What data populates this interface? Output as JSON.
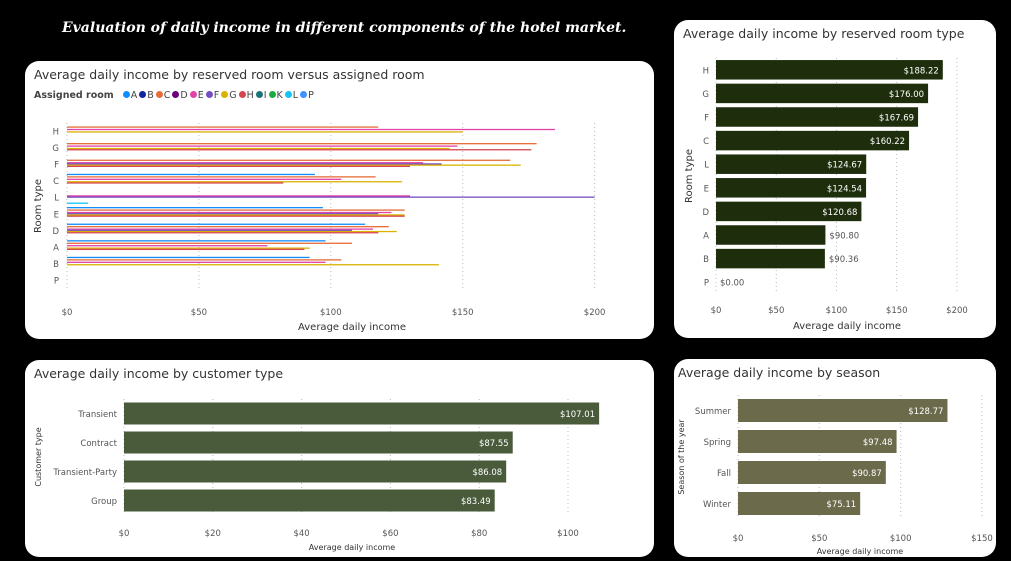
{
  "main_title": "Evaluation of daily income in different components of the hotel market.",
  "charts": {
    "reserved_vs_assigned": {
      "title": "Average daily income by reserved room versus assigned room",
      "legend_title": "Assigned room"
    },
    "reserved_type": {
      "title": "Average daily income by reserved room type"
    },
    "customer_type": {
      "title": "Average daily income by customer type"
    },
    "season": {
      "title": "Average daily income by season"
    }
  },
  "colors": {
    "dark_green": "#1e2e0c",
    "olive": "#4a5b3b",
    "khaki": "#6b6b4b",
    "rooms": {
      "A": "#118dff",
      "B": "#12239e",
      "C": "#e66c37",
      "D": "#6b007b",
      "E": "#e044a7",
      "F": "#744ec2",
      "G": "#d9b300",
      "H": "#d64550",
      "I": "#197278",
      "K": "#1aab40",
      "L": "#15c6f4",
      "P": "#4092ff"
    }
  },
  "chart_data": [
    {
      "type": "bar",
      "orientation": "horizontal",
      "title": "Average daily income by reserved room versus assigned room",
      "xlabel": "Average daily income",
      "ylabel": "Room type",
      "xlim": [
        0,
        210
      ],
      "xticks": [
        "$0",
        "$50",
        "$100",
        "$150",
        "$200"
      ],
      "xtick_values": [
        0,
        50,
        100,
        150,
        200
      ],
      "legend_title": "Assigned room",
      "legend": [
        "A",
        "B",
        "C",
        "D",
        "E",
        "F",
        "G",
        "H",
        "I",
        "K",
        "L",
        "P"
      ],
      "legend_placement": "top-left",
      "categories": [
        "H",
        "G",
        "F",
        "C",
        "L",
        "E",
        "D",
        "A",
        "B",
        "P"
      ],
      "series": [
        {
          "name": "A",
          "values": [
            null,
            null,
            null,
            94,
            null,
            97,
            113,
            98,
            92,
            null
          ]
        },
        {
          "name": "B",
          "values": [
            null,
            null,
            null,
            null,
            null,
            null,
            null,
            null,
            null,
            null
          ]
        },
        {
          "name": "C",
          "values": [
            118,
            178,
            168,
            117,
            null,
            128,
            122,
            108,
            104,
            null
          ]
        },
        {
          "name": "D",
          "values": [
            null,
            null,
            null,
            null,
            null,
            null,
            null,
            null,
            null,
            null
          ]
        },
        {
          "name": "E",
          "values": [
            185,
            148,
            135,
            104,
            130,
            123,
            116,
            76,
            98,
            null
          ]
        },
        {
          "name": "F",
          "values": [
            null,
            null,
            142,
            null,
            200,
            118,
            108,
            null,
            null,
            null
          ]
        },
        {
          "name": "G",
          "values": [
            150,
            145,
            172,
            127,
            null,
            128,
            125,
            92,
            141,
            null
          ]
        },
        {
          "name": "H",
          "values": [
            null,
            176,
            130,
            82,
            null,
            128,
            118,
            90,
            null,
            null
          ]
        },
        {
          "name": "I",
          "values": [
            null,
            null,
            null,
            null,
            null,
            null,
            null,
            null,
            null,
            null
          ]
        },
        {
          "name": "K",
          "values": [
            null,
            null,
            null,
            null,
            null,
            null,
            null,
            null,
            null,
            null
          ]
        },
        {
          "name": "L",
          "values": [
            null,
            null,
            null,
            null,
            8,
            null,
            null,
            null,
            null,
            null
          ]
        },
        {
          "name": "P",
          "values": [
            null,
            null,
            null,
            null,
            null,
            null,
            null,
            null,
            null,
            null
          ]
        }
      ]
    },
    {
      "type": "bar",
      "orientation": "horizontal",
      "title": "Average daily income by reserved room type",
      "xlabel": "Average daily income",
      "ylabel": "Room type",
      "xlim": [
        0,
        200
      ],
      "xticks": [
        "$0",
        "$50",
        "$100",
        "$150",
        "$200"
      ],
      "xtick_values": [
        0,
        50,
        100,
        150,
        200
      ],
      "categories": [
        "H",
        "G",
        "F",
        "C",
        "L",
        "E",
        "D",
        "A",
        "B",
        "P"
      ],
      "values": [
        188.22,
        176.0,
        167.69,
        160.22,
        124.67,
        124.54,
        120.68,
        90.8,
        90.36,
        0.0
      ],
      "data_labels": [
        "$188.22",
        "$176.00",
        "$167.69",
        "$160.22",
        "$124.67",
        "$124.54",
        "$120.68",
        "$90.80",
        "$90.36",
        "$0.00"
      ]
    },
    {
      "type": "bar",
      "orientation": "horizontal",
      "title": "Average daily income by customer type",
      "xlabel": "Average daily income",
      "ylabel": "Customer type",
      "xlim": [
        0,
        100
      ],
      "xticks": [
        "$0",
        "$20",
        "$40",
        "$60",
        "$80",
        "$100"
      ],
      "xtick_values": [
        0,
        20,
        40,
        60,
        80,
        100
      ],
      "categories": [
        "Transient",
        "Contract",
        "Transient-Party",
        "Group"
      ],
      "values": [
        107.01,
        87.55,
        86.08,
        83.49
      ],
      "data_labels": [
        "$107.01",
        "$87.55",
        "$86.08",
        "$83.49"
      ]
    },
    {
      "type": "bar",
      "orientation": "horizontal",
      "title": "Average daily income by season",
      "xlabel": "Average daily income",
      "ylabel": "Season of the year",
      "xlim": [
        0,
        150
      ],
      "xticks": [
        "$0",
        "$50",
        "$100",
        "$150"
      ],
      "xtick_values": [
        0,
        50,
        100,
        150
      ],
      "categories": [
        "Summer",
        "Spring",
        "Fall",
        "Winter"
      ],
      "values": [
        128.77,
        97.48,
        90.87,
        75.11
      ],
      "data_labels": [
        "$128.77",
        "$97.48",
        "$90.87",
        "$75.11"
      ]
    }
  ]
}
